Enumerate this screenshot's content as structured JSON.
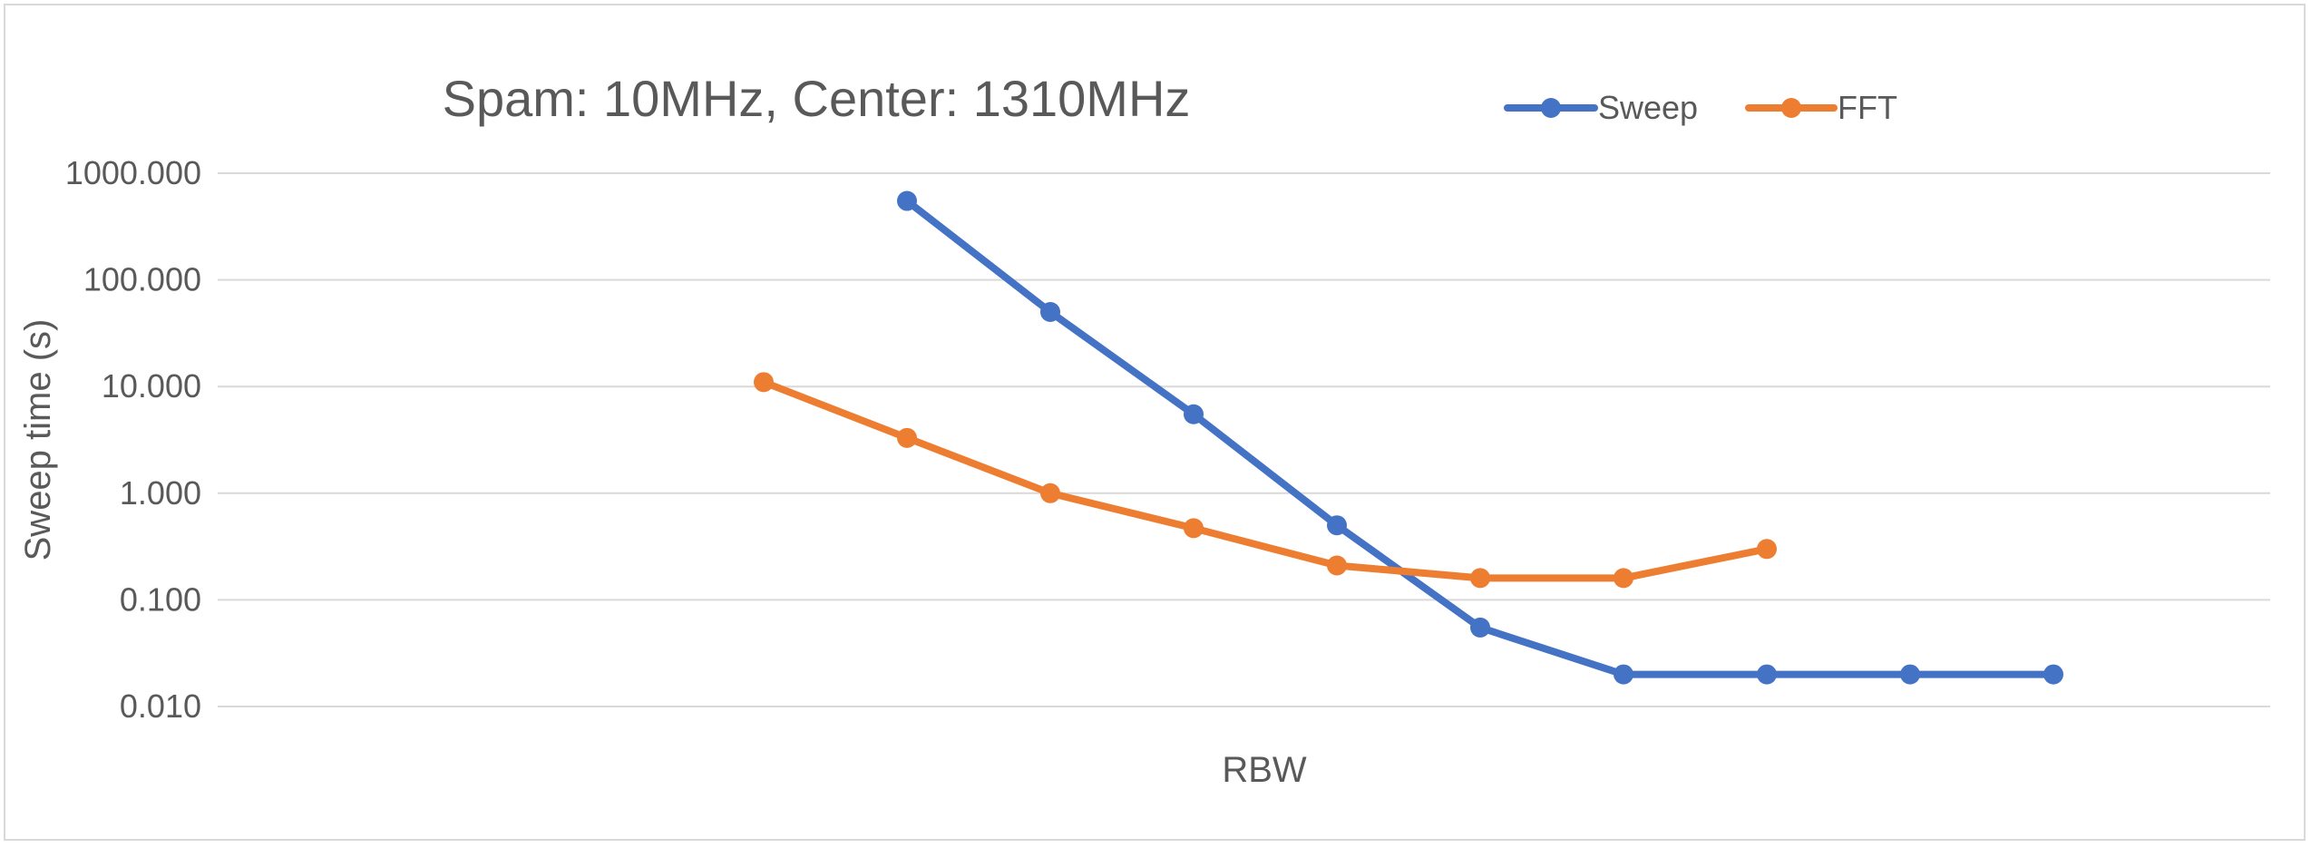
{
  "chart_data": {
    "type": "line",
    "title": "Spam: 10MHz, Center: 1310MHz",
    "xlabel": "RBW",
    "ylabel": "Sweep time (s)",
    "y_scale": "log",
    "ylim": [
      0.01,
      1000
    ],
    "y_ticks": [
      "1000.000",
      "100.000",
      "10.000",
      "1.000",
      "0.100",
      "0.010"
    ],
    "y_tick_values": [
      1000,
      100,
      10,
      1,
      0.1,
      0.01
    ],
    "grid": true,
    "legend_position": "top-right",
    "x_count": 15,
    "series": [
      {
        "name": "Sweep",
        "color": "#4472c4",
        "points": [
          {
            "x": 6,
            "y": 550
          },
          {
            "x": 7,
            "y": 50
          },
          {
            "x": 8,
            "y": 5.5
          },
          {
            "x": 9,
            "y": 0.5
          },
          {
            "x": 10,
            "y": 0.055
          },
          {
            "x": 11,
            "y": 0.02
          },
          {
            "x": 12,
            "y": 0.02
          },
          {
            "x": 13,
            "y": 0.02
          },
          {
            "x": 14,
            "y": 0.02
          }
        ]
      },
      {
        "name": "FFT",
        "color": "#ed7d31",
        "points": [
          {
            "x": 5,
            "y": 11
          },
          {
            "x": 6,
            "y": 3.3
          },
          {
            "x": 7,
            "y": 1.0
          },
          {
            "x": 8,
            "y": 0.47
          },
          {
            "x": 9,
            "y": 0.21
          },
          {
            "x": 10,
            "y": 0.16
          },
          {
            "x": 11,
            "y": 0.16
          },
          {
            "x": 12,
            "y": 0.3
          }
        ]
      }
    ]
  }
}
